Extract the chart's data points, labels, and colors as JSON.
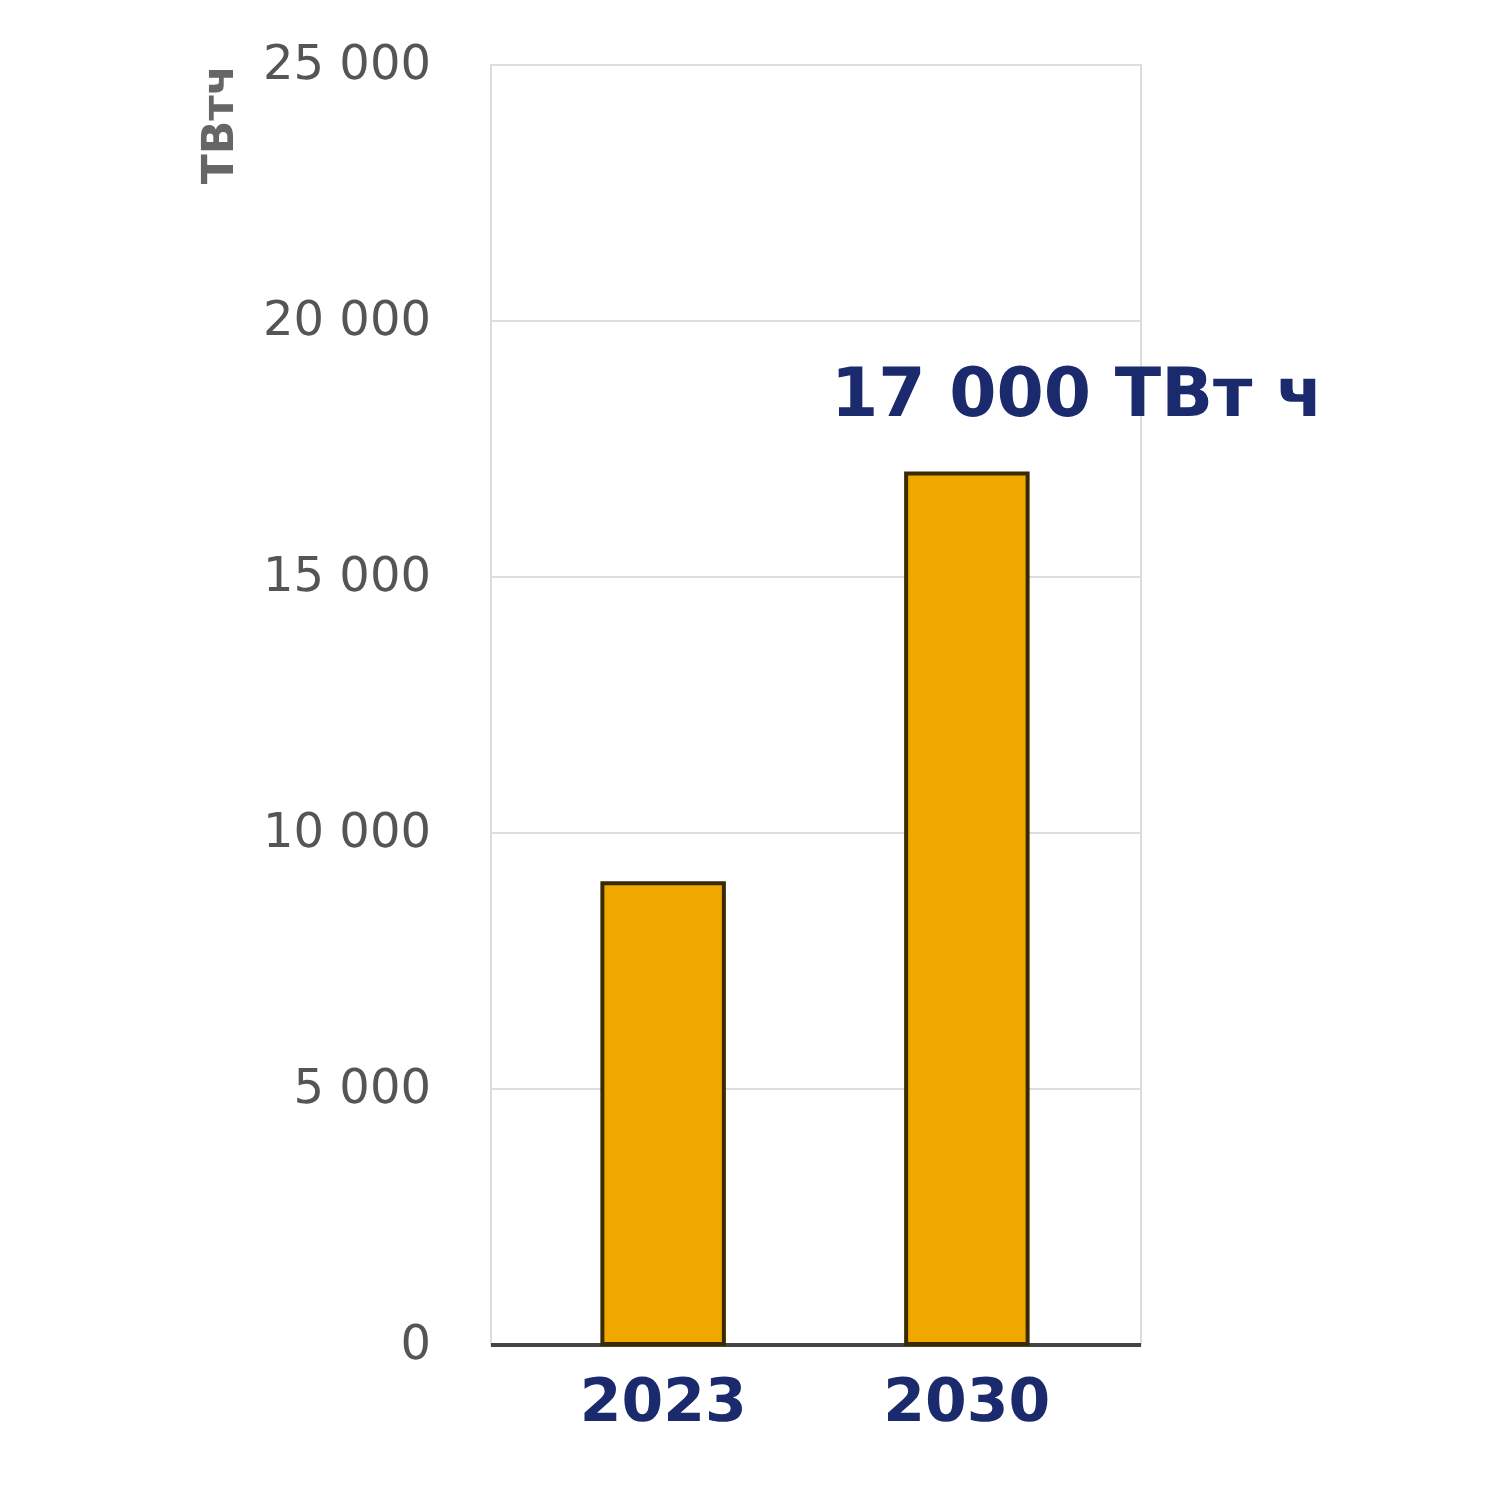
{
  "chart_data": {
    "type": "bar",
    "ylabel": "ТВтч",
    "categories": [
      "2023",
      "2030"
    ],
    "values": [
      9000,
      17000
    ],
    "color": "#f0a800",
    "value_labels": [
      null,
      "17 000 ТВт ч"
    ],
    "ylim": [
      0,
      25000
    ],
    "yticks": [
      {
        "value": 0,
        "label": "0"
      },
      {
        "value": 5000,
        "label": "5 000"
      },
      {
        "value": 10000,
        "label": "10 000"
      },
      {
        "value": 15000,
        "label": "15 000"
      },
      {
        "value": 20000,
        "label": "20 000"
      },
      {
        "value": 25000,
        "label": "25 000"
      }
    ],
    "grid": "y"
  }
}
